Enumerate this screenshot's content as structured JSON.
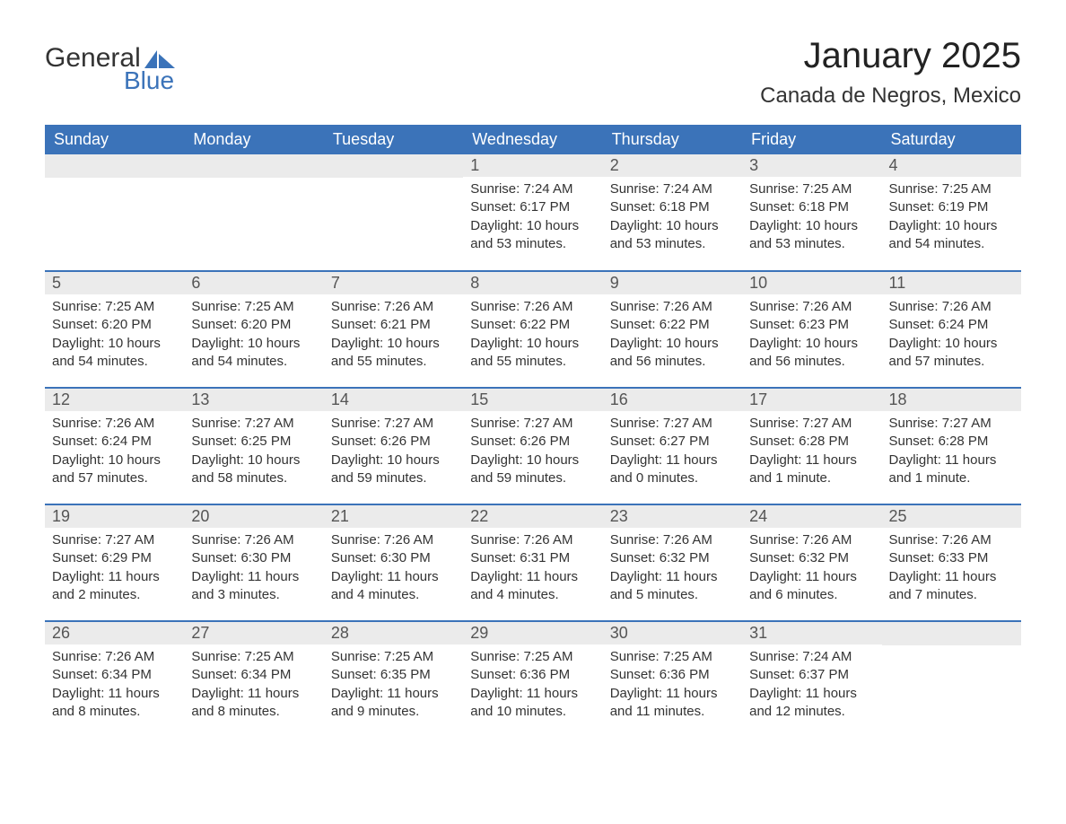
{
  "logo": {
    "general": "General",
    "blue": "Blue",
    "accent_color": "#3b73b9"
  },
  "title": "January 2025",
  "location": "Canada de Negros, Mexico",
  "colors": {
    "header_bg": "#3b73b9",
    "header_fg": "#ffffff",
    "daynum_bg": "#ebebeb",
    "daynum_fg": "#555555",
    "border": "#3b73b9",
    "text": "#333333",
    "page_bg": "#ffffff"
  },
  "weekdays": [
    "Sunday",
    "Monday",
    "Tuesday",
    "Wednesday",
    "Thursday",
    "Friday",
    "Saturday"
  ],
  "weeks": [
    [
      null,
      null,
      null,
      {
        "num": "1",
        "sunrise": "Sunrise: 7:24 AM",
        "sunset": "Sunset: 6:17 PM",
        "daylight": "Daylight: 10 hours and 53 minutes."
      },
      {
        "num": "2",
        "sunrise": "Sunrise: 7:24 AM",
        "sunset": "Sunset: 6:18 PM",
        "daylight": "Daylight: 10 hours and 53 minutes."
      },
      {
        "num": "3",
        "sunrise": "Sunrise: 7:25 AM",
        "sunset": "Sunset: 6:18 PM",
        "daylight": "Daylight: 10 hours and 53 minutes."
      },
      {
        "num": "4",
        "sunrise": "Sunrise: 7:25 AM",
        "sunset": "Sunset: 6:19 PM",
        "daylight": "Daylight: 10 hours and 54 minutes."
      }
    ],
    [
      {
        "num": "5",
        "sunrise": "Sunrise: 7:25 AM",
        "sunset": "Sunset: 6:20 PM",
        "daylight": "Daylight: 10 hours and 54 minutes."
      },
      {
        "num": "6",
        "sunrise": "Sunrise: 7:25 AM",
        "sunset": "Sunset: 6:20 PM",
        "daylight": "Daylight: 10 hours and 54 minutes."
      },
      {
        "num": "7",
        "sunrise": "Sunrise: 7:26 AM",
        "sunset": "Sunset: 6:21 PM",
        "daylight": "Daylight: 10 hours and 55 minutes."
      },
      {
        "num": "8",
        "sunrise": "Sunrise: 7:26 AM",
        "sunset": "Sunset: 6:22 PM",
        "daylight": "Daylight: 10 hours and 55 minutes."
      },
      {
        "num": "9",
        "sunrise": "Sunrise: 7:26 AM",
        "sunset": "Sunset: 6:22 PM",
        "daylight": "Daylight: 10 hours and 56 minutes."
      },
      {
        "num": "10",
        "sunrise": "Sunrise: 7:26 AM",
        "sunset": "Sunset: 6:23 PM",
        "daylight": "Daylight: 10 hours and 56 minutes."
      },
      {
        "num": "11",
        "sunrise": "Sunrise: 7:26 AM",
        "sunset": "Sunset: 6:24 PM",
        "daylight": "Daylight: 10 hours and 57 minutes."
      }
    ],
    [
      {
        "num": "12",
        "sunrise": "Sunrise: 7:26 AM",
        "sunset": "Sunset: 6:24 PM",
        "daylight": "Daylight: 10 hours and 57 minutes."
      },
      {
        "num": "13",
        "sunrise": "Sunrise: 7:27 AM",
        "sunset": "Sunset: 6:25 PM",
        "daylight": "Daylight: 10 hours and 58 minutes."
      },
      {
        "num": "14",
        "sunrise": "Sunrise: 7:27 AM",
        "sunset": "Sunset: 6:26 PM",
        "daylight": "Daylight: 10 hours and 59 minutes."
      },
      {
        "num": "15",
        "sunrise": "Sunrise: 7:27 AM",
        "sunset": "Sunset: 6:26 PM",
        "daylight": "Daylight: 10 hours and 59 minutes."
      },
      {
        "num": "16",
        "sunrise": "Sunrise: 7:27 AM",
        "sunset": "Sunset: 6:27 PM",
        "daylight": "Daylight: 11 hours and 0 minutes."
      },
      {
        "num": "17",
        "sunrise": "Sunrise: 7:27 AM",
        "sunset": "Sunset: 6:28 PM",
        "daylight": "Daylight: 11 hours and 1 minute."
      },
      {
        "num": "18",
        "sunrise": "Sunrise: 7:27 AM",
        "sunset": "Sunset: 6:28 PM",
        "daylight": "Daylight: 11 hours and 1 minute."
      }
    ],
    [
      {
        "num": "19",
        "sunrise": "Sunrise: 7:27 AM",
        "sunset": "Sunset: 6:29 PM",
        "daylight": "Daylight: 11 hours and 2 minutes."
      },
      {
        "num": "20",
        "sunrise": "Sunrise: 7:26 AM",
        "sunset": "Sunset: 6:30 PM",
        "daylight": "Daylight: 11 hours and 3 minutes."
      },
      {
        "num": "21",
        "sunrise": "Sunrise: 7:26 AM",
        "sunset": "Sunset: 6:30 PM",
        "daylight": "Daylight: 11 hours and 4 minutes."
      },
      {
        "num": "22",
        "sunrise": "Sunrise: 7:26 AM",
        "sunset": "Sunset: 6:31 PM",
        "daylight": "Daylight: 11 hours and 4 minutes."
      },
      {
        "num": "23",
        "sunrise": "Sunrise: 7:26 AM",
        "sunset": "Sunset: 6:32 PM",
        "daylight": "Daylight: 11 hours and 5 minutes."
      },
      {
        "num": "24",
        "sunrise": "Sunrise: 7:26 AM",
        "sunset": "Sunset: 6:32 PM",
        "daylight": "Daylight: 11 hours and 6 minutes."
      },
      {
        "num": "25",
        "sunrise": "Sunrise: 7:26 AM",
        "sunset": "Sunset: 6:33 PM",
        "daylight": "Daylight: 11 hours and 7 minutes."
      }
    ],
    [
      {
        "num": "26",
        "sunrise": "Sunrise: 7:26 AM",
        "sunset": "Sunset: 6:34 PM",
        "daylight": "Daylight: 11 hours and 8 minutes."
      },
      {
        "num": "27",
        "sunrise": "Sunrise: 7:25 AM",
        "sunset": "Sunset: 6:34 PM",
        "daylight": "Daylight: 11 hours and 8 minutes."
      },
      {
        "num": "28",
        "sunrise": "Sunrise: 7:25 AM",
        "sunset": "Sunset: 6:35 PM",
        "daylight": "Daylight: 11 hours and 9 minutes."
      },
      {
        "num": "29",
        "sunrise": "Sunrise: 7:25 AM",
        "sunset": "Sunset: 6:36 PM",
        "daylight": "Daylight: 11 hours and 10 minutes."
      },
      {
        "num": "30",
        "sunrise": "Sunrise: 7:25 AM",
        "sunset": "Sunset: 6:36 PM",
        "daylight": "Daylight: 11 hours and 11 minutes."
      },
      {
        "num": "31",
        "sunrise": "Sunrise: 7:24 AM",
        "sunset": "Sunset: 6:37 PM",
        "daylight": "Daylight: 11 hours and 12 minutes."
      },
      null
    ]
  ]
}
